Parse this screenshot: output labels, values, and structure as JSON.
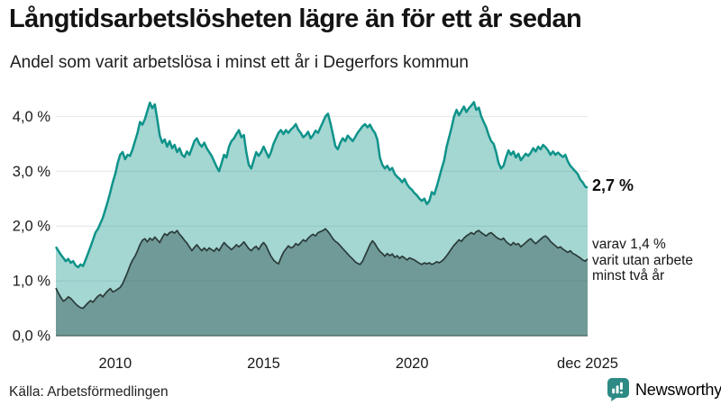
{
  "header": {
    "title": "Långtidsarbetslösheten lägre än för ett år sedan",
    "subtitle": "Andel som varit arbetslösa i minst ett år i Degerfors kommun"
  },
  "annotations": {
    "latest_value": "2,7 %",
    "secondary_line1": "varav 1,4 %",
    "secondary_line2": "varit utan arbete",
    "secondary_line3": "minst två år"
  },
  "source": {
    "label": "Källa: Arbetsförmedlingen"
  },
  "branding": {
    "name": "Newsworthy",
    "icon": "newsworthy-speech-bubble-chart-icon",
    "color": "#2d8a85"
  },
  "colors": {
    "primary_line": "#0f938a",
    "primary_fill": "rgba(15,147,138,0.38)",
    "secondary_line": "#2b3b39",
    "secondary_fill": "rgba(39,71,68,0.42)",
    "grid": "#e2e6e6",
    "baseline": "#46605c",
    "tick_text": "#1a1a1a"
  },
  "chart_data": {
    "type": "area",
    "title": "Långtidsarbetslösheten lägre än för ett år sedan",
    "subtitle": "Andel som varit arbetslösa i minst ett år i Degerfors kommun",
    "unit": "%",
    "x_start": 2008.0,
    "x_step_years": 0.0833333,
    "xlim": [
      2008.0,
      2025.9167
    ],
    "ylim": [
      0,
      4.4
    ],
    "grid": "horizontal",
    "legend_position": "none",
    "x_ticks": [
      {
        "value": 2010,
        "label": "2010"
      },
      {
        "value": 2015,
        "label": "2015"
      },
      {
        "value": 2020,
        "label": "2020"
      },
      {
        "value": 2025.9167,
        "label": "dec 2025"
      }
    ],
    "y_ticks": [
      {
        "value": 0,
        "label": "0,0 %"
      },
      {
        "value": 1,
        "label": "1,0 %"
      },
      {
        "value": 2,
        "label": "2,0 %"
      },
      {
        "value": 3,
        "label": "3,0 %"
      },
      {
        "value": 4,
        "label": "4,0 %"
      }
    ],
    "series": [
      {
        "name": "Arbetslösa minst ett år",
        "end_label": "2,7 %",
        "last_value": 2.7,
        "values": [
          1.62,
          1.55,
          1.48,
          1.42,
          1.36,
          1.4,
          1.33,
          1.36,
          1.28,
          1.25,
          1.3,
          1.27,
          1.38,
          1.5,
          1.62,
          1.75,
          1.88,
          1.95,
          2.05,
          2.15,
          2.3,
          2.45,
          2.62,
          2.8,
          2.95,
          3.15,
          3.3,
          3.35,
          3.22,
          3.3,
          3.28,
          3.4,
          3.55,
          3.7,
          3.9,
          3.85,
          3.95,
          4.1,
          4.25,
          4.15,
          4.22,
          3.95,
          3.65,
          3.52,
          3.58,
          3.45,
          3.55,
          3.42,
          3.48,
          3.35,
          3.42,
          3.3,
          3.26,
          3.36,
          3.3,
          3.42,
          3.55,
          3.6,
          3.5,
          3.45,
          3.52,
          3.42,
          3.35,
          3.28,
          3.18,
          3.08,
          3.0,
          3.15,
          3.3,
          3.25,
          3.45,
          3.55,
          3.6,
          3.68,
          3.75,
          3.62,
          3.66,
          3.35,
          3.12,
          3.05,
          3.2,
          3.35,
          3.28,
          3.35,
          3.45,
          3.35,
          3.25,
          3.35,
          3.5,
          3.6,
          3.7,
          3.75,
          3.68,
          3.75,
          3.7,
          3.76,
          3.8,
          3.86,
          3.76,
          3.7,
          3.62,
          3.66,
          3.72,
          3.6,
          3.66,
          3.74,
          3.7,
          3.8,
          3.9,
          4.0,
          4.05,
          3.88,
          3.68,
          3.46,
          3.4,
          3.52,
          3.6,
          3.55,
          3.65,
          3.6,
          3.55,
          3.62,
          3.7,
          3.76,
          3.82,
          3.86,
          3.8,
          3.85,
          3.76,
          3.7,
          3.58,
          3.25,
          3.12,
          3.05,
          3.1,
          3.02,
          3.06,
          2.95,
          2.9,
          2.86,
          2.8,
          2.86,
          2.76,
          2.7,
          2.66,
          2.6,
          2.56,
          2.5,
          2.46,
          2.5,
          2.4,
          2.46,
          2.62,
          2.58,
          2.72,
          2.88,
          3.05,
          3.2,
          3.45,
          3.62,
          3.8,
          4.0,
          4.12,
          4.02,
          4.1,
          4.18,
          4.08,
          4.15,
          4.2,
          4.26,
          4.12,
          4.16,
          4.0,
          3.9,
          3.8,
          3.66,
          3.55,
          3.5,
          3.35,
          3.15,
          3.05,
          3.1,
          3.25,
          3.38,
          3.3,
          3.36,
          3.25,
          3.32,
          3.2,
          3.26,
          3.32,
          3.28,
          3.34,
          3.42,
          3.36,
          3.45,
          3.4,
          3.48,
          3.44,
          3.38,
          3.3,
          3.36,
          3.3,
          3.34,
          3.3,
          3.26,
          3.3,
          3.18,
          3.1,
          3.05,
          3.0,
          2.95,
          2.85,
          2.8,
          2.72,
          2.7
        ]
      },
      {
        "name": "Arbetslösa minst två år",
        "end_label": "varav 1,4 % varit utan arbete minst två år",
        "last_value": 1.4,
        "values": [
          0.87,
          0.78,
          0.7,
          0.63,
          0.66,
          0.71,
          0.68,
          0.63,
          0.58,
          0.54,
          0.51,
          0.5,
          0.55,
          0.6,
          0.64,
          0.61,
          0.67,
          0.72,
          0.75,
          0.71,
          0.77,
          0.82,
          0.86,
          0.8,
          0.82,
          0.85,
          0.88,
          0.95,
          1.05,
          1.16,
          1.28,
          1.38,
          1.45,
          1.55,
          1.66,
          1.74,
          1.77,
          1.71,
          1.78,
          1.74,
          1.8,
          1.75,
          1.7,
          1.79,
          1.86,
          1.83,
          1.88,
          1.9,
          1.87,
          1.92,
          1.85,
          1.8,
          1.74,
          1.69,
          1.62,
          1.55,
          1.61,
          1.66,
          1.6,
          1.55,
          1.6,
          1.55,
          1.6,
          1.57,
          1.54,
          1.6,
          1.55,
          1.63,
          1.7,
          1.65,
          1.61,
          1.57,
          1.61,
          1.66,
          1.62,
          1.66,
          1.71,
          1.65,
          1.59,
          1.55,
          1.6,
          1.63,
          1.57,
          1.65,
          1.7,
          1.64,
          1.54,
          1.45,
          1.38,
          1.34,
          1.31,
          1.42,
          1.52,
          1.58,
          1.64,
          1.6,
          1.62,
          1.68,
          1.65,
          1.7,
          1.75,
          1.72,
          1.78,
          1.82,
          1.85,
          1.82,
          1.88,
          1.9,
          1.92,
          1.95,
          1.9,
          1.84,
          1.77,
          1.72,
          1.69,
          1.64,
          1.59,
          1.54,
          1.49,
          1.44,
          1.4,
          1.35,
          1.32,
          1.3,
          1.36,
          1.46,
          1.56,
          1.66,
          1.73,
          1.68,
          1.6,
          1.54,
          1.5,
          1.45,
          1.5,
          1.46,
          1.49,
          1.43,
          1.46,
          1.41,
          1.45,
          1.42,
          1.38,
          1.42,
          1.4,
          1.38,
          1.35,
          1.32,
          1.3,
          1.33,
          1.31,
          1.33,
          1.3,
          1.32,
          1.35,
          1.33,
          1.36,
          1.4,
          1.46,
          1.52,
          1.59,
          1.65,
          1.7,
          1.75,
          1.72,
          1.78,
          1.82,
          1.85,
          1.88,
          1.85,
          1.9,
          1.92,
          1.88,
          1.85,
          1.82,
          1.86,
          1.88,
          1.84,
          1.8,
          1.77,
          1.75,
          1.78,
          1.72,
          1.68,
          1.65,
          1.7,
          1.66,
          1.68,
          1.62,
          1.66,
          1.7,
          1.74,
          1.77,
          1.72,
          1.68,
          1.72,
          1.76,
          1.8,
          1.82,
          1.78,
          1.72,
          1.68,
          1.64,
          1.6,
          1.62,
          1.58,
          1.55,
          1.52,
          1.55,
          1.5,
          1.48,
          1.45,
          1.42,
          1.38,
          1.36,
          1.4
        ]
      }
    ]
  }
}
